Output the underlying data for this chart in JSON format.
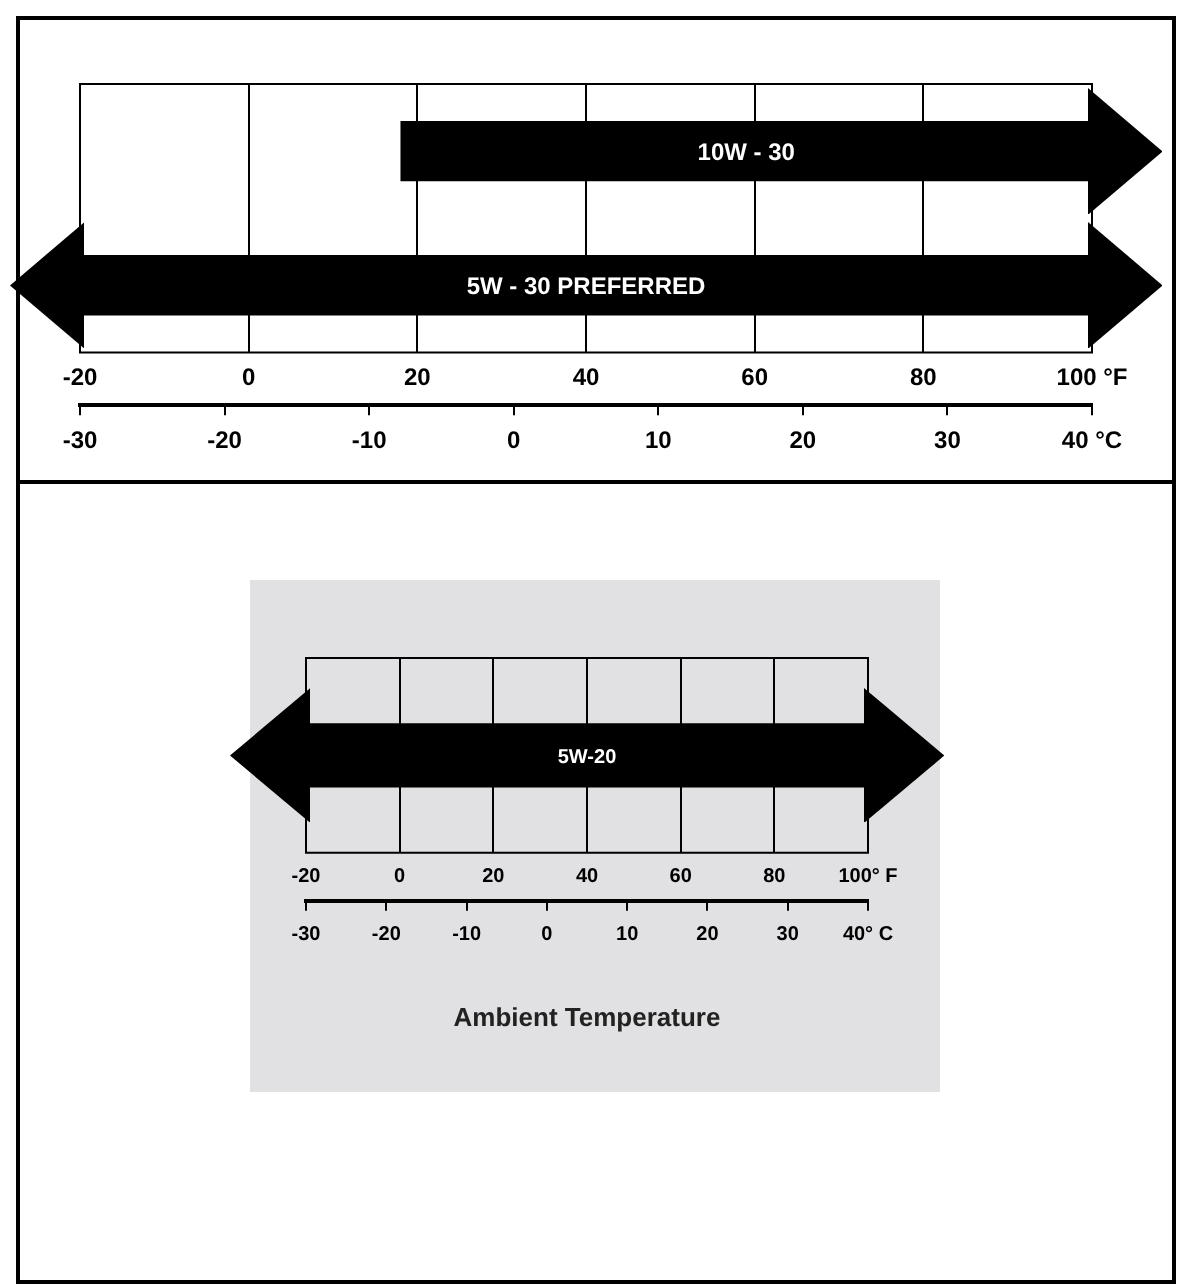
{
  "chart_data": [
    {
      "type": "bar",
      "orientation": "horizontal",
      "categories": [
        "10W - 30",
        "5W - 30 PREFERRED"
      ],
      "values": [
        82,
        120
      ],
      "base": [
        18,
        -20
      ],
      "color": "#000000",
      "xlim": [
        -20,
        100
      ],
      "xticks": [
        -20,
        0,
        20,
        40,
        60,
        80,
        {
          "value": 100,
          "label": "100 °F"
        }
      ],
      "x2lim": [
        -30,
        40
      ],
      "x2ticks": [
        -30,
        -20,
        -10,
        0,
        10,
        20,
        30,
        {
          "value": 40,
          "label": "40 °C"
        }
      ],
      "grid": "x",
      "tick_labels": "x"
    },
    {
      "type": "bar",
      "orientation": "horizontal",
      "categories": [
        "5W-20"
      ],
      "values": [
        120
      ],
      "base": [
        -20
      ],
      "color": "#000000",
      "xlim": [
        -20,
        100
      ],
      "xticks": [
        -20,
        0,
        20,
        40,
        60,
        80,
        {
          "value": 100,
          "label": "100° F"
        }
      ],
      "x2lim": [
        -30,
        40
      ],
      "x2ticks": [
        -30,
        -20,
        -10,
        0,
        10,
        20,
        30,
        {
          "value": 40,
          "label": "40° C"
        }
      ],
      "x2label": "Ambient Temperature",
      "grid": "x",
      "tick_labels": "x"
    }
  ]
}
